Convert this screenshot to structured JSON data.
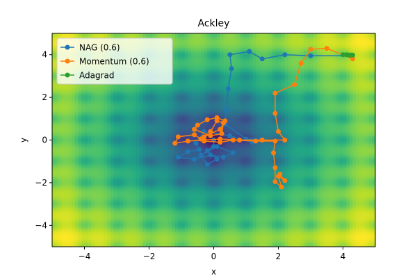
{
  "chart_data": {
    "type": "line",
    "title": "Ackley",
    "xlabel": "x",
    "ylabel": "y",
    "xlim": [
      -5,
      5
    ],
    "ylim": [
      -5,
      5
    ],
    "xticks": [
      -4,
      -2,
      0,
      2,
      4
    ],
    "yticks": [
      -4,
      -2,
      0,
      2,
      4
    ],
    "legend_position": "top-left",
    "background": "Ackley function contour map, viridis colormap, minimum at (0, 0)",
    "series": [
      {
        "name": "NAG (0.6)",
        "color": "#1f77b4",
        "points": [
          [
            4.25,
            3.95
          ],
          [
            3.0,
            3.95
          ],
          [
            2.2,
            4.0
          ],
          [
            1.5,
            3.8
          ],
          [
            1.1,
            4.15
          ],
          [
            0.5,
            4.0
          ],
          [
            0.55,
            3.35
          ],
          [
            0.45,
            2.4
          ],
          [
            0.4,
            1.4
          ],
          [
            0.35,
            0.75
          ],
          [
            1.0,
            0.05
          ],
          [
            1.45,
            0.05
          ],
          [
            1.2,
            -0.1
          ],
          [
            0.5,
            0.2
          ],
          [
            -0.3,
            0.4
          ],
          [
            -0.55,
            -0.15
          ],
          [
            -0.45,
            -0.45
          ],
          [
            -0.8,
            -0.55
          ],
          [
            -1.1,
            -0.8
          ],
          [
            -0.6,
            -0.9
          ],
          [
            -0.1,
            -0.7
          ],
          [
            0.3,
            -0.8
          ],
          [
            0.6,
            -0.6
          ],
          [
            0.1,
            -0.3
          ],
          [
            -0.4,
            -0.7
          ],
          [
            -0.2,
            -1.15
          ],
          [
            0.1,
            -0.9
          ],
          [
            -0.2,
            -0.5
          ],
          [
            0.0,
            -0.3
          ],
          [
            0.0,
            0.0
          ]
        ]
      },
      {
        "name": "Momentum (0.6)",
        "color": "#ff7f0e",
        "points": [
          [
            4.3,
            3.8
          ],
          [
            3.5,
            4.3
          ],
          [
            3.0,
            4.25
          ],
          [
            2.7,
            3.6
          ],
          [
            2.5,
            2.6
          ],
          [
            1.9,
            2.2
          ],
          [
            1.9,
            1.25
          ],
          [
            2.0,
            0.4
          ],
          [
            2.2,
            0.0
          ],
          [
            1.5,
            0.0
          ],
          [
            0.8,
            0.0
          ],
          [
            0.2,
            0.05
          ],
          [
            -0.3,
            0.0
          ],
          [
            -0.8,
            -0.05
          ],
          [
            -1.2,
            -0.15
          ],
          [
            -1.1,
            0.15
          ],
          [
            -0.6,
            0.25
          ],
          [
            -0.4,
            0.05
          ],
          [
            -0.1,
            0.4
          ],
          [
            0.1,
            0.9
          ],
          [
            0.3,
            0.8
          ],
          [
            0.25,
            0.3
          ],
          [
            -0.1,
            0.2
          ],
          [
            -0.6,
            0.5
          ],
          [
            -0.5,
            0.7
          ],
          [
            -0.2,
            0.95
          ],
          [
            0.1,
            1.05
          ],
          [
            0.35,
            0.9
          ],
          [
            0.2,
            0.5
          ],
          [
            -0.3,
            0.15
          ],
          [
            -0.3,
            -0.05
          ],
          [
            0.2,
            -0.1
          ],
          [
            0.6,
            0.0
          ],
          [
            1.3,
            -0.05
          ],
          [
            1.9,
            -0.05
          ],
          [
            1.85,
            -0.6
          ],
          [
            1.9,
            -1.3
          ],
          [
            1.9,
            -1.95
          ],
          [
            2.1,
            -2.2
          ],
          [
            2.0,
            -1.7
          ],
          [
            2.2,
            -1.9
          ],
          [
            2.05,
            -1.6
          ]
        ]
      },
      {
        "name": "Adagrad",
        "color": "#2ca02c",
        "points": [
          [
            4.0,
            4.0
          ],
          [
            4.1,
            4.0
          ],
          [
            4.15,
            3.99
          ],
          [
            4.2,
            3.98
          ],
          [
            4.25,
            3.98
          ],
          [
            4.3,
            3.98
          ]
        ]
      }
    ]
  }
}
